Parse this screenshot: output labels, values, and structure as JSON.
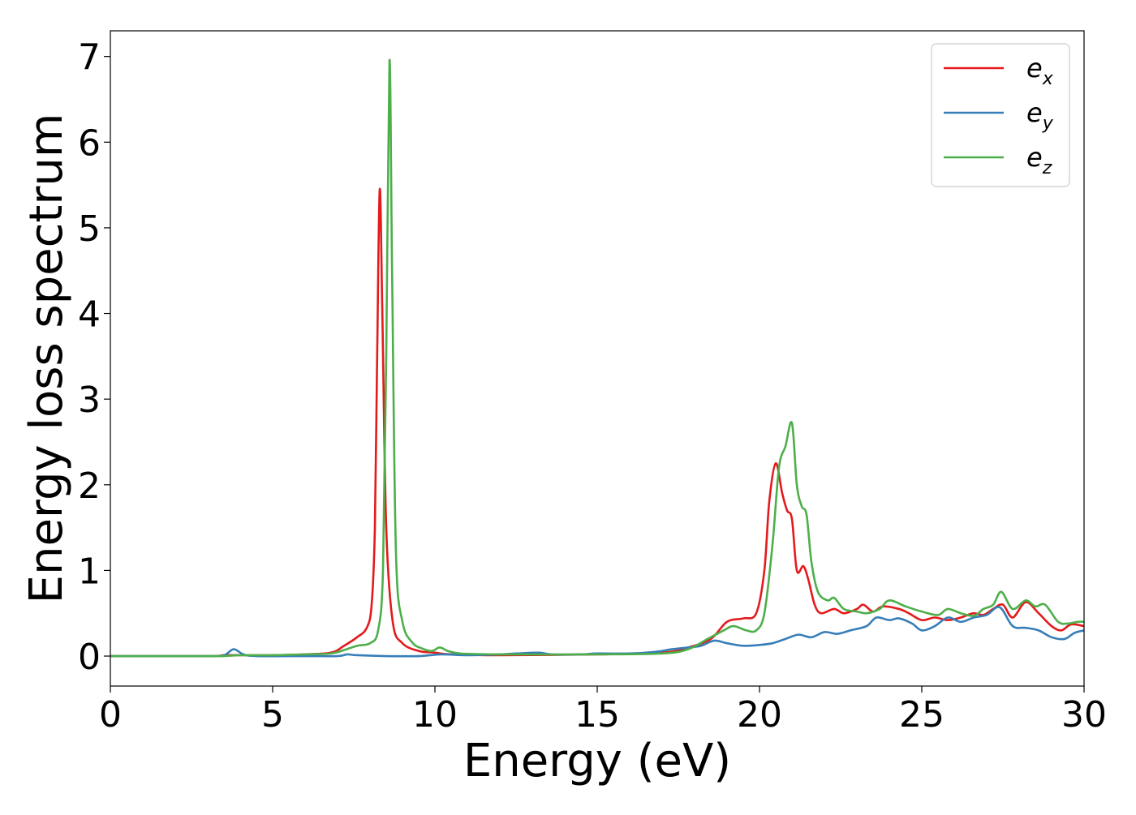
{
  "chart_data": {
    "type": "line",
    "xlabel": "Energy (eV)",
    "ylabel": "Energy loss spectrum",
    "xlim": [
      0,
      30
    ],
    "ylim": [
      -0.35,
      7.3
    ],
    "xticks": [
      "0",
      "5",
      "10",
      "15",
      "20",
      "25",
      "30"
    ],
    "yticks": [
      "0",
      "1",
      "2",
      "3",
      "4",
      "5",
      "6",
      "7"
    ],
    "grid": false,
    "legend_position": "top-right",
    "series": [
      {
        "name": "e",
        "subscript": "x",
        "color": "#e41a1c",
        "points": [
          [
            0,
            0.0
          ],
          [
            3.0,
            0.0
          ],
          [
            3.5,
            0.01
          ],
          [
            4.0,
            0.01
          ],
          [
            5.0,
            0.01
          ],
          [
            6.0,
            0.02
          ],
          [
            6.8,
            0.04
          ],
          [
            7.2,
            0.12
          ],
          [
            7.6,
            0.22
          ],
          [
            7.9,
            0.33
          ],
          [
            8.05,
            0.6
          ],
          [
            8.15,
            1.5
          ],
          [
            8.22,
            3.5
          ],
          [
            8.3,
            5.45
          ],
          [
            8.38,
            4.0
          ],
          [
            8.5,
            1.5
          ],
          [
            8.7,
            0.4
          ],
          [
            9.0,
            0.15
          ],
          [
            9.5,
            0.06
          ],
          [
            10.0,
            0.04
          ],
          [
            10.5,
            0.02
          ],
          [
            12.0,
            0.01
          ],
          [
            15.0,
            0.02
          ],
          [
            17.0,
            0.04
          ],
          [
            17.8,
            0.1
          ],
          [
            18.5,
            0.2
          ],
          [
            19.0,
            0.4
          ],
          [
            19.5,
            0.44
          ],
          [
            19.9,
            0.5
          ],
          [
            20.15,
            1.0
          ],
          [
            20.3,
            1.8
          ],
          [
            20.5,
            2.25
          ],
          [
            20.7,
            1.9
          ],
          [
            20.85,
            1.7
          ],
          [
            21.0,
            1.6
          ],
          [
            21.15,
            1.0
          ],
          [
            21.35,
            1.05
          ],
          [
            21.5,
            0.9
          ],
          [
            21.7,
            0.6
          ],
          [
            21.9,
            0.5
          ],
          [
            22.3,
            0.55
          ],
          [
            22.6,
            0.5
          ],
          [
            23.0,
            0.55
          ],
          [
            23.2,
            0.6
          ],
          [
            23.5,
            0.52
          ],
          [
            23.8,
            0.58
          ],
          [
            24.3,
            0.55
          ],
          [
            24.6,
            0.5
          ],
          [
            25.0,
            0.42
          ],
          [
            25.4,
            0.45
          ],
          [
            25.8,
            0.42
          ],
          [
            26.2,
            0.45
          ],
          [
            26.6,
            0.5
          ],
          [
            26.9,
            0.48
          ],
          [
            27.2,
            0.55
          ],
          [
            27.5,
            0.6
          ],
          [
            27.8,
            0.45
          ],
          [
            28.2,
            0.63
          ],
          [
            28.6,
            0.5
          ],
          [
            29.0,
            0.35
          ],
          [
            29.3,
            0.3
          ],
          [
            29.6,
            0.37
          ],
          [
            30.0,
            0.35
          ]
        ]
      },
      {
        "name": "e",
        "subscript": "y",
        "color": "#377eb8",
        "points": [
          [
            0,
            0.0
          ],
          [
            3.0,
            0.0
          ],
          [
            3.5,
            0.01
          ],
          [
            3.8,
            0.08
          ],
          [
            4.1,
            0.02
          ],
          [
            4.5,
            0.0
          ],
          [
            6.0,
            0.0
          ],
          [
            7.0,
            0.0
          ],
          [
            7.3,
            0.02
          ],
          [
            7.6,
            0.01
          ],
          [
            8.5,
            0.0
          ],
          [
            9.5,
            0.0
          ],
          [
            10.2,
            0.02
          ],
          [
            11.0,
            0.01
          ],
          [
            12.0,
            0.02
          ],
          [
            12.5,
            0.03
          ],
          [
            13.2,
            0.04
          ],
          [
            13.6,
            0.02
          ],
          [
            14.5,
            0.02
          ],
          [
            15.0,
            0.03
          ],
          [
            16.0,
            0.03
          ],
          [
            16.8,
            0.05
          ],
          [
            17.3,
            0.08
          ],
          [
            17.8,
            0.1
          ],
          [
            18.2,
            0.12
          ],
          [
            18.6,
            0.18
          ],
          [
            19.0,
            0.15
          ],
          [
            19.5,
            0.12
          ],
          [
            20.0,
            0.13
          ],
          [
            20.4,
            0.15
          ],
          [
            20.8,
            0.2
          ],
          [
            21.2,
            0.25
          ],
          [
            21.6,
            0.22
          ],
          [
            22.0,
            0.28
          ],
          [
            22.4,
            0.26
          ],
          [
            22.8,
            0.3
          ],
          [
            23.3,
            0.35
          ],
          [
            23.6,
            0.45
          ],
          [
            24.0,
            0.42
          ],
          [
            24.3,
            0.44
          ],
          [
            24.7,
            0.38
          ],
          [
            25.0,
            0.3
          ],
          [
            25.4,
            0.35
          ],
          [
            25.8,
            0.45
          ],
          [
            26.2,
            0.4
          ],
          [
            26.6,
            0.45
          ],
          [
            27.0,
            0.48
          ],
          [
            27.4,
            0.57
          ],
          [
            27.8,
            0.35
          ],
          [
            28.2,
            0.33
          ],
          [
            28.6,
            0.3
          ],
          [
            29.0,
            0.22
          ],
          [
            29.4,
            0.2
          ],
          [
            29.7,
            0.27
          ],
          [
            30.0,
            0.3
          ]
        ]
      },
      {
        "name": "e",
        "subscript": "z",
        "color": "#4daf4a",
        "points": [
          [
            0,
            0.0
          ],
          [
            3.0,
            0.0
          ],
          [
            3.5,
            0.0
          ],
          [
            4.0,
            0.01
          ],
          [
            5.0,
            0.01
          ],
          [
            6.0,
            0.02
          ],
          [
            6.8,
            0.03
          ],
          [
            7.2,
            0.07
          ],
          [
            7.6,
            0.12
          ],
          [
            8.0,
            0.15
          ],
          [
            8.25,
            0.3
          ],
          [
            8.4,
            1.0
          ],
          [
            8.5,
            3.5
          ],
          [
            8.6,
            6.95
          ],
          [
            8.68,
            4.5
          ],
          [
            8.8,
            1.2
          ],
          [
            9.0,
            0.4
          ],
          [
            9.3,
            0.16
          ],
          [
            9.6,
            0.09
          ],
          [
            9.9,
            0.06
          ],
          [
            10.15,
            0.1
          ],
          [
            10.4,
            0.06
          ],
          [
            10.8,
            0.03
          ],
          [
            12.0,
            0.02
          ],
          [
            15.0,
            0.02
          ],
          [
            17.0,
            0.03
          ],
          [
            17.8,
            0.08
          ],
          [
            18.4,
            0.2
          ],
          [
            18.9,
            0.3
          ],
          [
            19.2,
            0.35
          ],
          [
            19.6,
            0.3
          ],
          [
            19.9,
            0.3
          ],
          [
            20.15,
            0.5
          ],
          [
            20.4,
            1.3
          ],
          [
            20.6,
            2.2
          ],
          [
            20.8,
            2.45
          ],
          [
            21.0,
            2.72
          ],
          [
            21.15,
            2.0
          ],
          [
            21.3,
            1.75
          ],
          [
            21.45,
            1.65
          ],
          [
            21.6,
            1.1
          ],
          [
            21.8,
            0.75
          ],
          [
            22.1,
            0.65
          ],
          [
            22.3,
            0.68
          ],
          [
            22.6,
            0.55
          ],
          [
            23.0,
            0.52
          ],
          [
            23.3,
            0.5
          ],
          [
            23.7,
            0.55
          ],
          [
            24.0,
            0.65
          ],
          [
            24.5,
            0.58
          ],
          [
            25.0,
            0.52
          ],
          [
            25.5,
            0.48
          ],
          [
            25.8,
            0.55
          ],
          [
            26.2,
            0.5
          ],
          [
            26.6,
            0.47
          ],
          [
            26.9,
            0.55
          ],
          [
            27.2,
            0.6
          ],
          [
            27.45,
            0.75
          ],
          [
            27.8,
            0.55
          ],
          [
            28.2,
            0.65
          ],
          [
            28.5,
            0.58
          ],
          [
            28.8,
            0.6
          ],
          [
            29.2,
            0.4
          ],
          [
            29.5,
            0.38
          ],
          [
            29.8,
            0.4
          ],
          [
            30.0,
            0.4
          ]
        ]
      }
    ]
  }
}
